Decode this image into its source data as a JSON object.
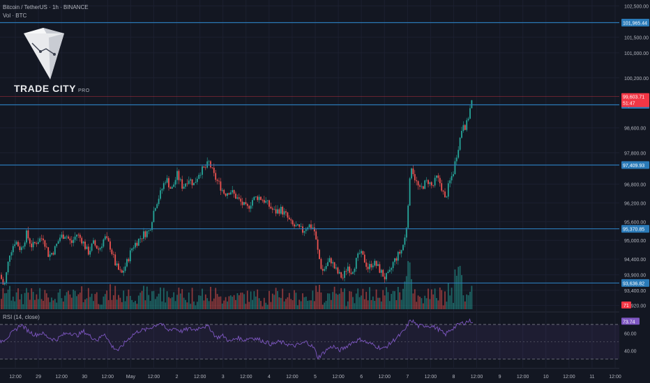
{
  "header": {
    "symbol_line": "Bitcoin / TetherUS · 1h · BINANCE",
    "volume_label": "Vol · BTC"
  },
  "logo": {
    "name": "TRADE CITY",
    "suffix": "PRO"
  },
  "rsi": {
    "label": "RSI (14, close)",
    "overbought": 70,
    "oversold": 30,
    "current": 73.74
  },
  "price_axis": {
    "ticks": [
      "102,500.00",
      "101,500.00",
      "101,000.00",
      "100,200.00",
      "98,600.00",
      "97,800.00",
      "96,800.00",
      "96,200.00",
      "95,600.00",
      "95,000.00",
      "94,400.00",
      "93,900.00",
      "93,400.00",
      "92,920.00"
    ],
    "rsi_ticks": [
      "60.00",
      "40.00"
    ]
  },
  "levels": [
    {
      "price": 101965.44,
      "label": "101,965.44"
    },
    {
      "price": 99337.31,
      "label": "99,337.31"
    },
    {
      "price": 97409.93,
      "label": "97,409.93"
    },
    {
      "price": 95370.85,
      "label": "95,370.85"
    },
    {
      "price": 93636.82,
      "label": "93,636.82"
    }
  ],
  "current_price": {
    "label": "99,603.71",
    "countdown": "51:47"
  },
  "volume_badge": "71",
  "time_axis": [
    "12:00",
    "29",
    "12:00",
    "30",
    "12:00",
    "May",
    "12:00",
    "2",
    "12:00",
    "3",
    "12:00",
    "4",
    "12:00",
    "5",
    "12:00",
    "6",
    "12:00",
    "7",
    "12:00",
    "8",
    "12:00",
    "9",
    "12:00",
    "10",
    "12:00",
    "11",
    "12:00"
  ],
  "colors": {
    "background": "#131722",
    "up": "#26a69a",
    "down": "#ef5350",
    "level_line": "#2962ff",
    "level_badge": "#2a7ab8",
    "rsi_line": "#7e57c2",
    "price_badge": "#f23645"
  },
  "chart_data": {
    "type": "candlestick",
    "interval": "1h",
    "price_range": [
      92800,
      102600
    ],
    "rsi_range": [
      25,
      78
    ],
    "path_points": [
      [
        0,
        93900
      ],
      [
        6,
        93500
      ],
      [
        14,
        94600
      ],
      [
        22,
        95000
      ],
      [
        30,
        94700
      ],
      [
        38,
        95200
      ],
      [
        46,
        94800
      ],
      [
        54,
        95000
      ],
      [
        62,
        95100
      ],
      [
        70,
        94500
      ],
      [
        78,
        94700
      ],
      [
        86,
        95100
      ],
      [
        94,
        95200
      ],
      [
        102,
        94900
      ],
      [
        110,
        95200
      ],
      [
        118,
        95000
      ],
      [
        126,
        94600
      ],
      [
        134,
        94900
      ],
      [
        142,
        94700
      ],
      [
        150,
        95100
      ],
      [
        158,
        94800
      ],
      [
        166,
        94200
      ],
      [
        174,
        93900
      ],
      [
        182,
        94300
      ],
      [
        190,
        94800
      ],
      [
        198,
        95000
      ],
      [
        206,
        95200
      ],
      [
        214,
        95300
      ],
      [
        222,
        96100
      ],
      [
        230,
        96500
      ],
      [
        238,
        97000
      ],
      [
        246,
        96600
      ],
      [
        254,
        97100
      ],
      [
        262,
        96700
      ],
      [
        270,
        97000
      ],
      [
        278,
        96800
      ],
      [
        286,
        97200
      ],
      [
        294,
        97300
      ],
      [
        300,
        97500
      ],
      [
        306,
        97100
      ],
      [
        314,
        96800
      ],
      [
        322,
        96500
      ],
      [
        330,
        96600
      ],
      [
        338,
        96400
      ],
      [
        346,
        96200
      ],
      [
        354,
        96000
      ],
      [
        362,
        96300
      ],
      [
        370,
        96400
      ],
      [
        378,
        96300
      ],
      [
        386,
        96100
      ],
      [
        394,
        95900
      ],
      [
        402,
        96000
      ],
      [
        410,
        95800
      ],
      [
        418,
        95500
      ],
      [
        426,
        95400
      ],
      [
        434,
        95300
      ],
      [
        442,
        95500
      ],
      [
        450,
        95400
      ],
      [
        456,
        94600
      ],
      [
        462,
        94000
      ],
      [
        468,
        94200
      ],
      [
        474,
        94400
      ],
      [
        480,
        94100
      ],
      [
        486,
        93900
      ],
      [
        492,
        93800
      ],
      [
        498,
        94200
      ],
      [
        504,
        94000
      ],
      [
        510,
        94300
      ],
      [
        516,
        94600
      ],
      [
        522,
        94400
      ],
      [
        528,
        94100
      ],
      [
        534,
        94300
      ],
      [
        540,
        94200
      ],
      [
        546,
        94000
      ],
      [
        552,
        93800
      ],
      [
        558,
        93900
      ],
      [
        564,
        94300
      ],
      [
        570,
        94500
      ],
      [
        576,
        94700
      ],
      [
        582,
        95200
      ],
      [
        586,
        96500
      ],
      [
        590,
        97400
      ],
      [
        596,
        96900
      ],
      [
        602,
        96600
      ],
      [
        608,
        96800
      ],
      [
        614,
        96900
      ],
      [
        620,
        96700
      ],
      [
        626,
        97000
      ],
      [
        632,
        96800
      ],
      [
        638,
        96300
      ],
      [
        644,
        96800
      ],
      [
        650,
        97200
      ],
      [
        656,
        97900
      ],
      [
        660,
        98300
      ],
      [
        664,
        98800
      ],
      [
        668,
        98600
      ],
      [
        672,
        99000
      ],
      [
        676,
        99400
      ],
      [
        679,
        99600
      ]
    ],
    "rsi_points": [
      [
        0,
        50
      ],
      [
        10,
        55
      ],
      [
        20,
        62
      ],
      [
        30,
        70
      ],
      [
        40,
        63
      ],
      [
        50,
        58
      ],
      [
        60,
        60
      ],
      [
        70,
        55
      ],
      [
        80,
        52
      ],
      [
        90,
        58
      ],
      [
        100,
        61
      ],
      [
        110,
        57
      ],
      [
        120,
        62
      ],
      [
        130,
        56
      ],
      [
        140,
        52
      ],
      [
        150,
        60
      ],
      [
        160,
        45
      ],
      [
        170,
        40
      ],
      [
        180,
        50
      ],
      [
        190,
        58
      ],
      [
        200,
        63
      ],
      [
        210,
        64
      ],
      [
        220,
        68
      ],
      [
        230,
        72
      ],
      [
        240,
        63
      ],
      [
        250,
        66
      ],
      [
        260,
        62
      ],
      [
        270,
        65
      ],
      [
        280,
        64
      ],
      [
        290,
        68
      ],
      [
        300,
        67
      ],
      [
        310,
        55
      ],
      [
        320,
        57
      ],
      [
        330,
        50
      ],
      [
        340,
        55
      ],
      [
        350,
        52
      ],
      [
        360,
        55
      ],
      [
        370,
        53
      ],
      [
        380,
        50
      ],
      [
        390,
        47
      ],
      [
        400,
        50
      ],
      [
        410,
        48
      ],
      [
        420,
        45
      ],
      [
        430,
        47
      ],
      [
        440,
        50
      ],
      [
        450,
        43
      ],
      [
        456,
        32
      ],
      [
        462,
        36
      ],
      [
        470,
        42
      ],
      [
        478,
        45
      ],
      [
        486,
        40
      ],
      [
        494,
        43
      ],
      [
        502,
        48
      ],
      [
        510,
        51
      ],
      [
        518,
        53
      ],
      [
        526,
        49
      ],
      [
        534,
        47
      ],
      [
        542,
        44
      ],
      [
        550,
        42
      ],
      [
        558,
        47
      ],
      [
        566,
        53
      ],
      [
        574,
        58
      ],
      [
        582,
        65
      ],
      [
        586,
        72
      ],
      [
        590,
        75
      ],
      [
        600,
        68
      ],
      [
        610,
        69
      ],
      [
        620,
        68
      ],
      [
        630,
        64
      ],
      [
        638,
        58
      ],
      [
        646,
        64
      ],
      [
        654,
        68
      ],
      [
        660,
        71
      ],
      [
        666,
        72
      ],
      [
        672,
        74
      ],
      [
        679,
        73.74
      ]
    ]
  }
}
